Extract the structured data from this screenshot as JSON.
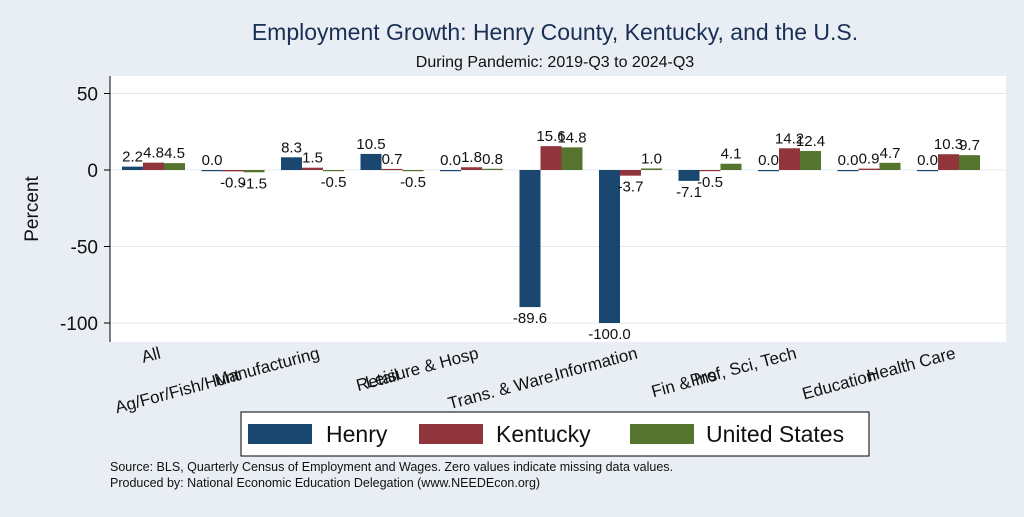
{
  "chart_data": {
    "type": "bar",
    "title": "Employment Growth: Henry County, Kentucky, and the U.S.",
    "subtitle": "During Pandemic: 2019-Q3 to 2024-Q3",
    "ylabel": "Percent",
    "xlabel": "",
    "ylim": [
      -110,
      55
    ],
    "yticks": [
      50,
      0,
      -50,
      -100
    ],
    "grid": true,
    "legend_position": "bottom",
    "categories": [
      "All",
      "Ag/For/Fish/Hunt",
      "Manufacturing",
      "Retail",
      "Leisure & Hosp",
      "Trans. & Ware.",
      "Information",
      "Fin & Ins",
      "Prof, Sci, Tech",
      "Education",
      "Health Care"
    ],
    "series": [
      {
        "name": "Henry",
        "color": "#1a476f",
        "values": [
          2.2,
          0.0,
          8.3,
          10.5,
          0.0,
          -89.6,
          -100.0,
          -7.1,
          0.0,
          0.0,
          0.0
        ]
      },
      {
        "name": "Kentucky",
        "color": "#90353b",
        "values": [
          4.8,
          -0.9,
          1.5,
          0.7,
          1.8,
          15.6,
          -3.7,
          -0.5,
          14.2,
          0.9,
          10.3
        ]
      },
      {
        "name": "United States",
        "color": "#55752f",
        "values": [
          4.5,
          -1.5,
          -0.5,
          -0.5,
          0.8,
          14.8,
          1.0,
          4.1,
          12.4,
          4.7,
          9.7
        ]
      }
    ],
    "value_labels": [
      [
        "2.2",
        "0.0",
        "8.3",
        "10.5",
        "0.0",
        "-89.6",
        "-100.0",
        "-7.1",
        "0.0",
        "0.0",
        "0.0"
      ],
      [
        "4.8",
        "-0.9",
        "1.5",
        "0.7",
        "1.8",
        "15.6",
        "-3.7",
        "-0.5",
        "14.2",
        "0.9",
        "10.3"
      ],
      [
        "4.5",
        "-1.5",
        "-0.5",
        "-0.5",
        "0.8",
        "14.8",
        "1.0",
        "4.1",
        "12.4",
        "4.7",
        "9.7"
      ]
    ]
  },
  "footer": {
    "source": "Source: BLS, Quarterly Census of Employment and Wages. Zero values indicate missing data values.",
    "produced_by": "Produced by: National Economic Education Delegation (www.NEEDEcon.org)"
  }
}
